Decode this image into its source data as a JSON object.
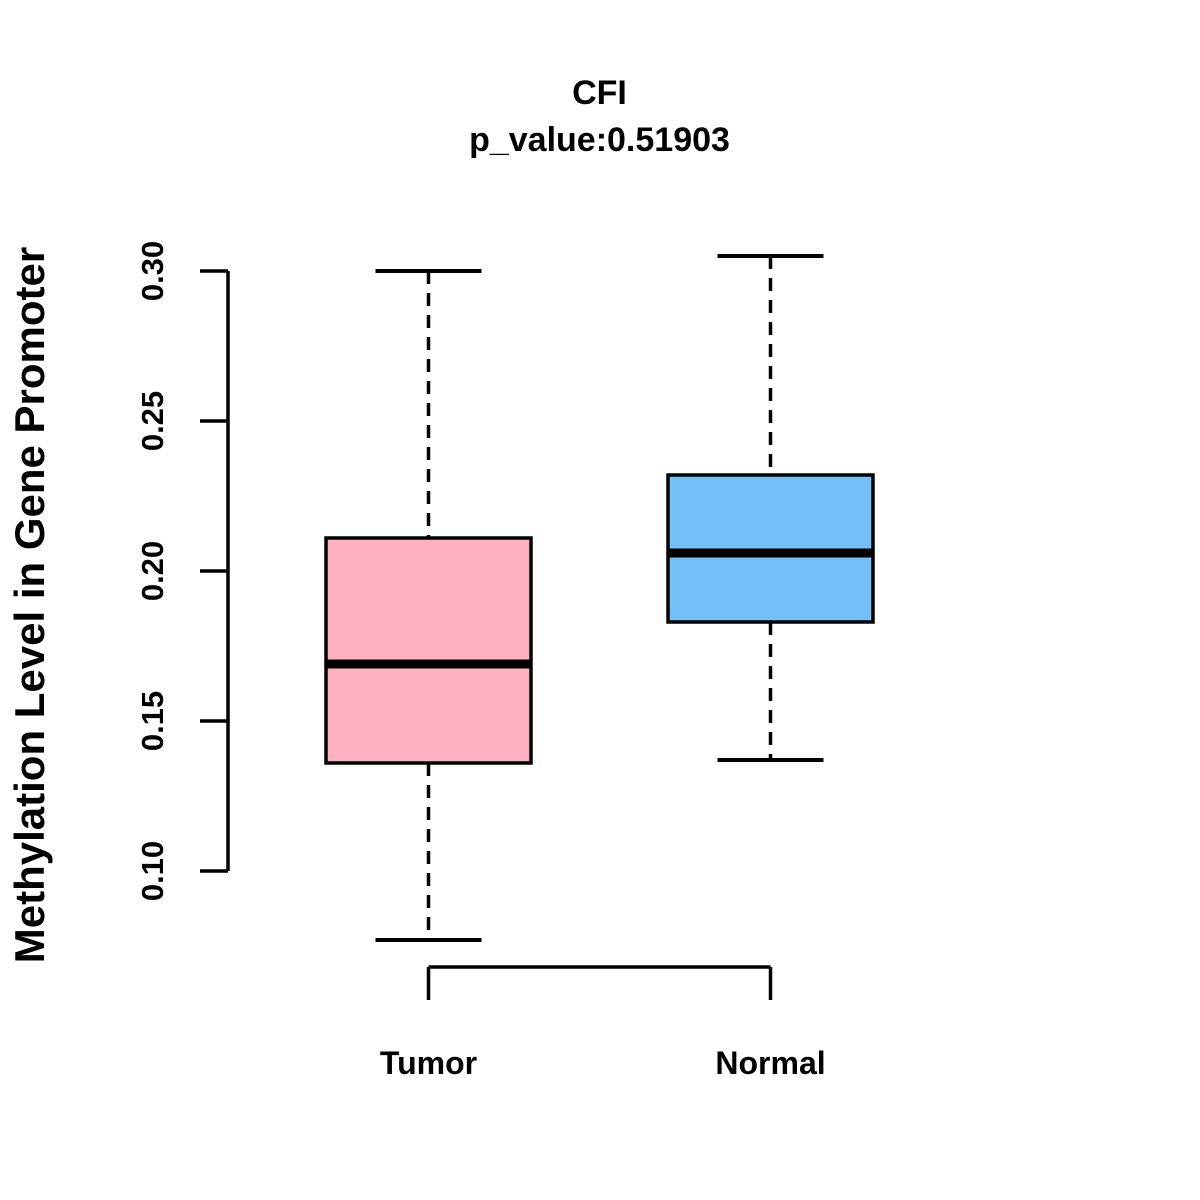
{
  "chart_data": {
    "type": "boxplot",
    "title": "CFI",
    "subtitle": "p_value:0.51903",
    "xlabel": "",
    "ylabel": "Methylation Level in Gene Promoter",
    "categories": [
      "Tumor",
      "Normal"
    ],
    "y_ticks": [
      "0.10",
      "0.15",
      "0.20",
      "0.25",
      "0.30"
    ],
    "ylim": [
      0.077,
      0.305
    ],
    "grid": false,
    "legend": "none",
    "axis_style": "left-axis-and-bottom-bracket-only",
    "whisker_line_style": "dashed",
    "series": [
      {
        "name": "Tumor",
        "min": 0.077,
        "q1": 0.136,
        "median": 0.169,
        "q3": 0.211,
        "max": 0.3,
        "fill": "#FFB1C1",
        "stroke": "#000000"
      },
      {
        "name": "Normal",
        "min": 0.137,
        "q1": 0.183,
        "median": 0.206,
        "q3": 0.232,
        "max": 0.305,
        "fill": "#74BFF8",
        "stroke": "#000000"
      }
    ],
    "colors": {
      "background": "#FFFFFF",
      "axis": "#000000",
      "text": "#000000",
      "tumor_fill": "#FFB1C1",
      "normal_fill": "#74BFF8"
    }
  }
}
